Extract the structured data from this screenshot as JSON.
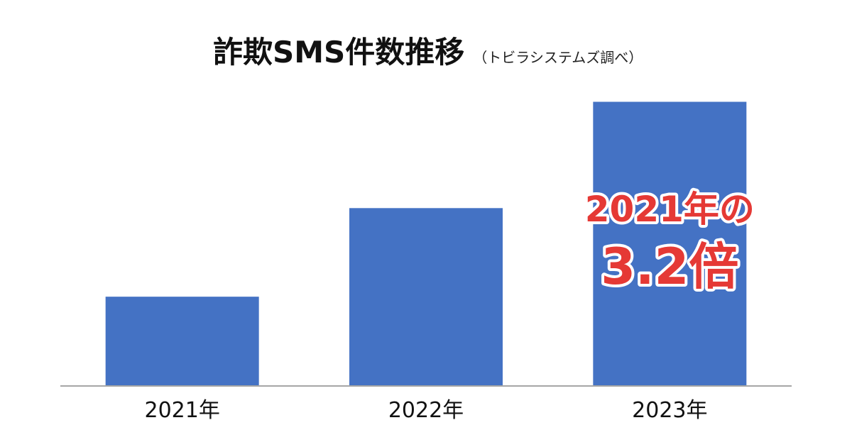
{
  "chart_data": {
    "type": "bar",
    "title": "詐欺SMS件数推移",
    "subtitle": "（トビラシステムズ調べ）",
    "categories": [
      "2021年",
      "2022年",
      "2023年"
    ],
    "values": [
      1.0,
      2.0,
      3.2
    ],
    "ylim": [
      0,
      3.3
    ],
    "bar_color": "#4472c4",
    "axis_color": "#a6a6a6",
    "grid": false,
    "annotation": {
      "line1": "2021年の",
      "line2": "3.2倍",
      "color": "#e53935"
    }
  }
}
